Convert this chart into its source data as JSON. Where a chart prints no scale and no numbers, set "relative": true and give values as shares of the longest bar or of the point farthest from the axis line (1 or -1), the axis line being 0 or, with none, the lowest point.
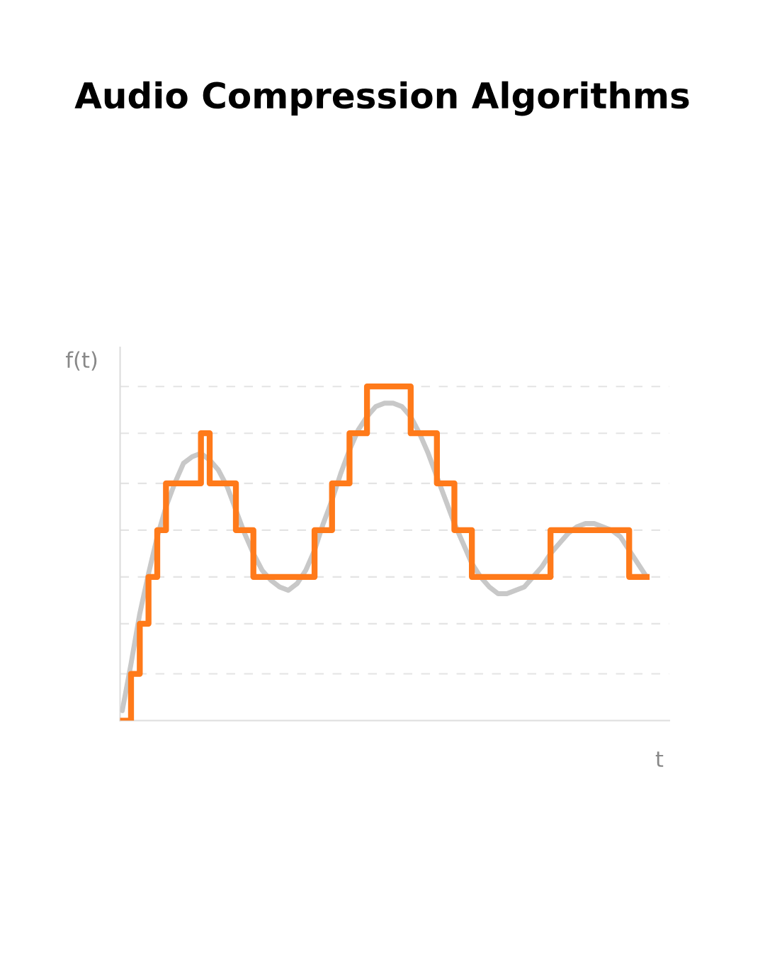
{
  "chart_data": {
    "type": "line",
    "title": "Audio Compression Algorithms",
    "xlabel": "t",
    "ylabel": "f(t)",
    "relative": true,
    "grid": "y",
    "categories": [
      null,
      null,
      null,
      null,
      null,
      null,
      null,
      null,
      null,
      null,
      null,
      null,
      null,
      null,
      null,
      null,
      null,
      null,
      null,
      null,
      null,
      null,
      null,
      null,
      null,
      null,
      null,
      null,
      null,
      null,
      null,
      null,
      null,
      null,
      null,
      null,
      null,
      null,
      null,
      null,
      null,
      null,
      null,
      null,
      null,
      null,
      null,
      null,
      null,
      null,
      null,
      null,
      null,
      null,
      null,
      null,
      null,
      null,
      null,
      null,
      null
    ],
    "series": [
      {
        "color": "#c8c8c8",
        "values": [
          0.03,
          0.17,
          0.32,
          0.44,
          0.55,
          0.64,
          0.71,
          0.77,
          0.79,
          0.8,
          0.78,
          0.75,
          0.7,
          0.63,
          0.56,
          0.5,
          0.45,
          0.42,
          0.4,
          0.39,
          0.41,
          0.45,
          0.51,
          0.59,
          0.66,
          0.74,
          0.81,
          0.87,
          0.91,
          0.94,
          0.95,
          0.95,
          0.94,
          0.91,
          0.86,
          0.8,
          0.73,
          0.66,
          0.59,
          0.53,
          0.47,
          0.43,
          0.4,
          0.38,
          0.38,
          0.39,
          0.4,
          0.43,
          0.46,
          0.5,
          0.53,
          0.56,
          0.58,
          0.59,
          0.59,
          0.58,
          0.57,
          0.55,
          0.51,
          0.47,
          0.43
        ]
      },
      {
        "type": "step",
        "color": "#ff7a1a",
        "values": [
          0,
          0.14,
          0.29,
          0.43,
          0.57,
          0.71,
          0.71,
          0.71,
          0.71,
          0.86,
          0.71,
          0.71,
          0.71,
          0.57,
          0.57,
          0.43,
          0.43,
          0.43,
          0.43,
          0.43,
          0.43,
          0.43,
          0.57,
          0.57,
          0.71,
          0.71,
          0.86,
          0.86,
          1,
          1,
          1,
          1,
          1,
          0.86,
          0.86,
          0.86,
          0.71,
          0.71,
          0.57,
          0.57,
          0.43,
          0.43,
          0.43,
          0.43,
          0.43,
          0.43,
          0.43,
          0.43,
          0.43,
          0.57,
          0.57,
          0.57,
          0.57,
          0.57,
          0.57,
          0.57,
          0.57,
          0.57,
          0.43,
          0.43,
          0.43
        ]
      }
    ]
  }
}
